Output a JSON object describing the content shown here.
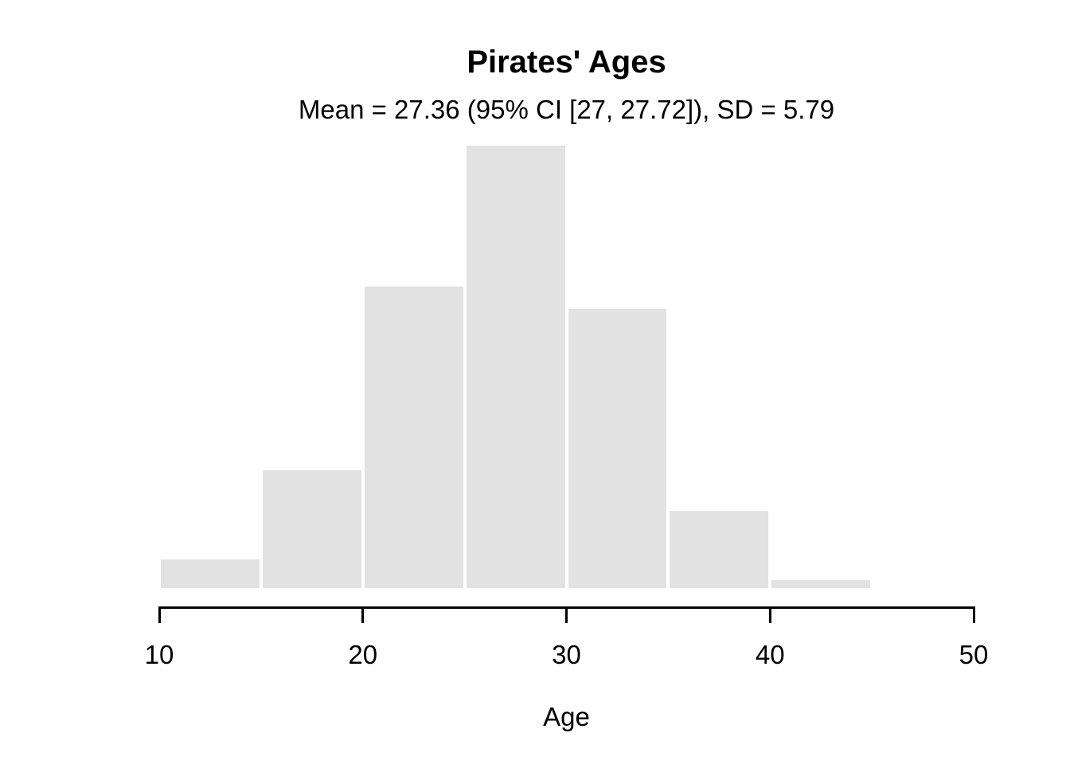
{
  "chart_data": {
    "type": "bar",
    "subtype": "histogram",
    "title": "Pirates' Ages",
    "subtitle": "Mean = 27.36 (95% CI [27, 27.72]), SD = 5.79",
    "xlabel": "Age",
    "ylabel": "",
    "xlim": [
      10,
      50
    ],
    "x_ticks": [
      "10",
      "20",
      "30",
      "40",
      "50"
    ],
    "x_tick_values": [
      10,
      20,
      30,
      40,
      50
    ],
    "y_axis_shown": false,
    "grid": false,
    "legend": false,
    "categories": [
      "10-15",
      "15-20",
      "20-25",
      "25-30",
      "30-35",
      "35-40",
      "40-45"
    ],
    "bins": [
      {
        "range": [
          10,
          15
        ],
        "rel_height": 0.071
      },
      {
        "range": [
          15,
          20
        ],
        "rel_height": 0.271
      },
      {
        "range": [
          20,
          25
        ],
        "rel_height": 0.684
      },
      {
        "range": [
          25,
          30
        ],
        "rel_height": 1.0
      },
      {
        "range": [
          30,
          35
        ],
        "rel_height": 0.634
      },
      {
        "range": [
          35,
          40
        ],
        "rel_height": 0.18
      },
      {
        "range": [
          40,
          45
        ],
        "rel_height": 0.025
      }
    ],
    "values_note": "relative frequencies normalized to tallest bin; no y-axis shown in figure",
    "colors": {
      "bar_fill": "#e2e2e2",
      "bar_border": "#ffffff",
      "axis": "#000000",
      "text": "#000000",
      "background": "#ffffff"
    }
  }
}
